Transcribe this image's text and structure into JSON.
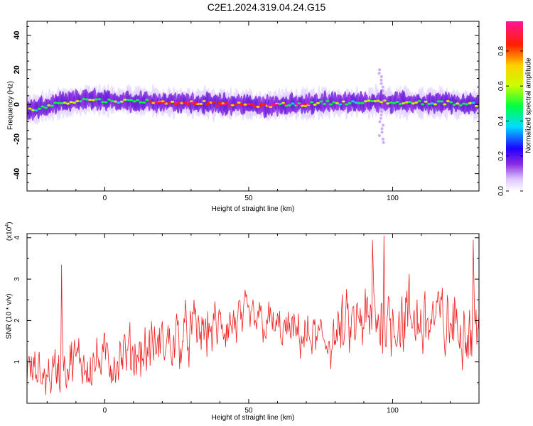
{
  "title": "C2E1.2024.319.04.24.G15",
  "chart_data": [
    {
      "type": "heatmap",
      "xlabel": "Height of straight line (km)",
      "ylabel": "Frequency (Hz)",
      "xlim": [
        -27,
        130
      ],
      "ylim": [
        -50,
        48
      ],
      "xticks": [
        0,
        50,
        100
      ],
      "yticks": [
        40,
        20,
        0,
        -20,
        -40
      ],
      "ridge": {
        "description_free": true,
        "x": [
          -25,
          -20,
          -15,
          -10,
          -5,
          0,
          5,
          10,
          15,
          20,
          25,
          30,
          35,
          40,
          45,
          50,
          55,
          60,
          65,
          70,
          75,
          80,
          85,
          90,
          95,
          100,
          105,
          110,
          115,
          120,
          125,
          130
        ],
        "y": [
          -3,
          -1,
          1,
          2,
          3,
          2,
          2,
          2,
          2,
          1,
          1,
          1,
          1,
          0,
          0,
          0,
          -1,
          0,
          0,
          0,
          1,
          1,
          1,
          1,
          2,
          1,
          1,
          1,
          1,
          1,
          0,
          0
        ]
      },
      "colorbar": {
        "label": "Normalized spectral amplitude",
        "ticks": [
          "0.0",
          "0.2",
          "0.4",
          "0.6",
          "0.8"
        ],
        "range": [
          0,
          0.97
        ]
      }
    },
    {
      "type": "line",
      "xlabel": "Height of straight line (km)",
      "ylabel": "SNR (10 * v/v)",
      "exponent_label": "(x10",
      "exponent_power": "4",
      "exponent_close": ")",
      "xlim": [
        -27,
        130
      ],
      "ylim": [
        0,
        4.1
      ],
      "xticks": [
        0,
        50,
        100
      ],
      "yticks": [
        1,
        2,
        3,
        4
      ],
      "series_color": "#ee2222",
      "envelope": {
        "x": [
          -27,
          -20,
          -15,
          -10,
          -5,
          0,
          5,
          10,
          20,
          30,
          40,
          45,
          50,
          55,
          60,
          65,
          70,
          75,
          80,
          85,
          90,
          95,
          100,
          105,
          110,
          115,
          120,
          125,
          130
        ],
        "mean": [
          0.8,
          0.7,
          0.9,
          1.0,
          1.0,
          1.0,
          1.1,
          1.2,
          1.4,
          1.7,
          1.8,
          1.9,
          2.0,
          2.0,
          1.8,
          1.7,
          1.6,
          1.5,
          1.6,
          1.8,
          1.9,
          2.0,
          2.1,
          2.0,
          2.0,
          2.0,
          1.9,
          1.9,
          2.0
        ],
        "spread": [
          0.6,
          0.7,
          0.8,
          0.8,
          0.8,
          0.8,
          0.8,
          0.8,
          0.9,
          0.9,
          0.8,
          0.8,
          0.7,
          0.7,
          0.6,
          0.6,
          0.7,
          0.8,
          0.9,
          1.0,
          1.1,
          1.2,
          1.2,
          1.2,
          1.2,
          1.1,
          1.1,
          1.1,
          1.1
        ]
      },
      "peaks": [
        {
          "x": -15,
          "y": 3.35
        },
        {
          "x": 93,
          "y": 3.95
        },
        {
          "x": 97,
          "y": 4.05
        },
        {
          "x": 128,
          "y": 3.95
        }
      ]
    }
  ]
}
